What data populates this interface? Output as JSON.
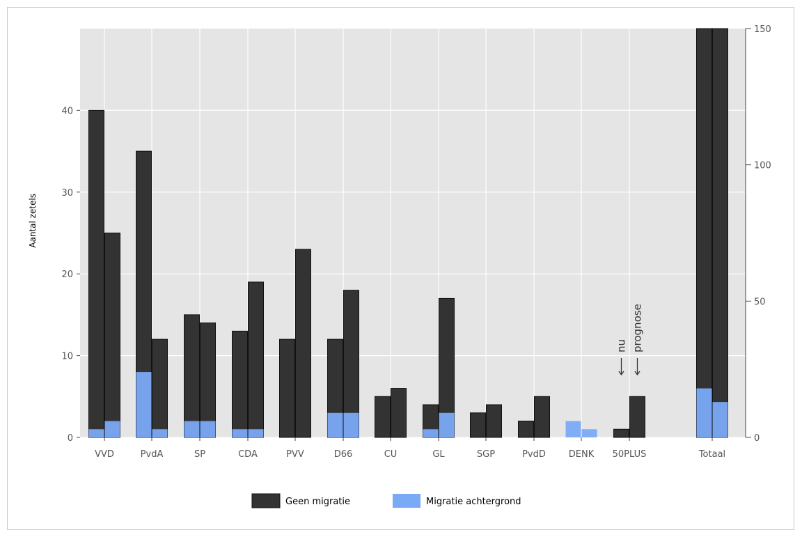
{
  "chart_data": {
    "type": "bar",
    "ylabel": "Aantal zetels",
    "ylim": [
      0,
      50
    ],
    "y2lim": [
      0,
      150
    ],
    "y_ticks": [
      0,
      10,
      20,
      30,
      40
    ],
    "y2_ticks": [
      0,
      50,
      100,
      150
    ],
    "categories": [
      "VVD",
      "PvdA",
      "SP",
      "CDA",
      "PVV",
      "D66",
      "CU",
      "GL",
      "SGP",
      "PvdD",
      "DENK",
      "50PLUS",
      "Totaal"
    ],
    "bar_labels": [
      "nu",
      "prognose"
    ],
    "series": [
      {
        "name": "Geen migratie",
        "color": "#333333",
        "nu": [
          40,
          35,
          15,
          13,
          12,
          12,
          5,
          4,
          3,
          2,
          0,
          1,
          150
        ],
        "prognose": [
          25,
          12,
          14,
          19,
          23,
          18,
          6,
          17,
          4,
          5,
          0,
          5,
          150
        ]
      },
      {
        "name": "Migratie achtergrond",
        "color": "#7aaaf5",
        "nu": [
          1,
          8,
          2,
          1,
          0,
          3,
          0,
          1,
          0,
          0,
          2,
          0,
          18
        ],
        "prognose": [
          2,
          1,
          2,
          1,
          0,
          3,
          0,
          3,
          0,
          0,
          1,
          0,
          13
        ]
      }
    ],
    "secondary_axis_for": [
      "Totaal"
    ],
    "annotations": [
      {
        "text": "nu",
        "category": "50PLUS",
        "bar": "nu",
        "arrow": "down"
      },
      {
        "text": "prognose",
        "category": "50PLUS",
        "bar": "prognose",
        "arrow": "down"
      }
    ],
    "grid": true,
    "legend_position": "bottom",
    "background": "#e5e5e5"
  }
}
